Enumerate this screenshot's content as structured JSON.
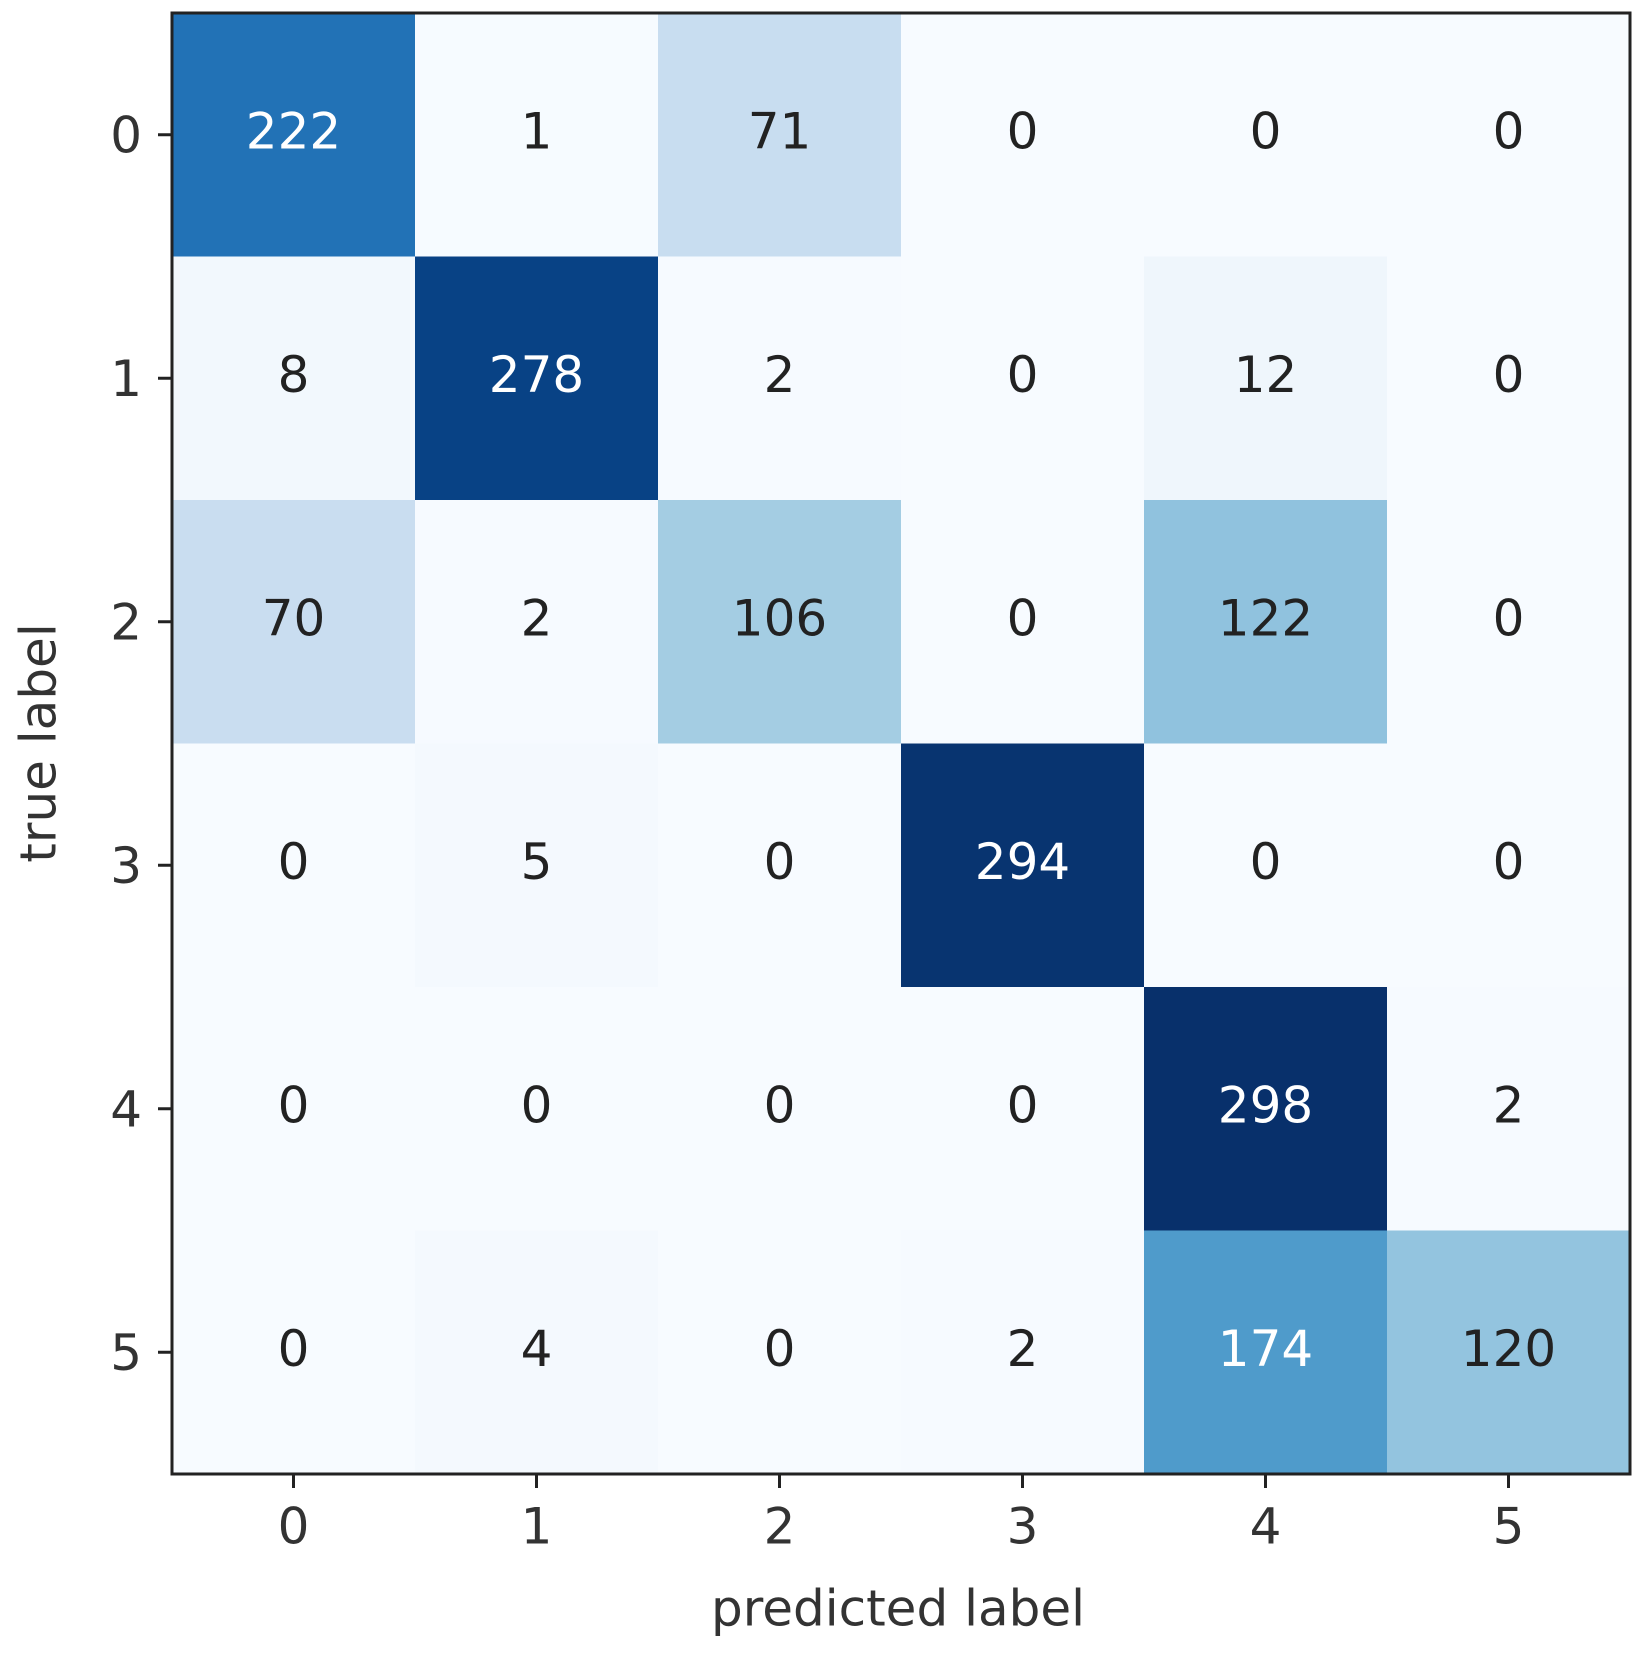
{
  "chart_data": {
    "type": "heatmap",
    "x_label": "predicted label",
    "y_label": "true label",
    "x_categories": [
      "0",
      "1",
      "2",
      "3",
      "4",
      "5"
    ],
    "y_categories": [
      "0",
      "1",
      "2",
      "3",
      "4",
      "5"
    ],
    "values": [
      [
        222,
        1,
        71,
        0,
        0,
        0
      ],
      [
        8,
        278,
        2,
        0,
        12,
        0
      ],
      [
        70,
        2,
        106,
        0,
        122,
        0
      ],
      [
        0,
        5,
        0,
        294,
        0,
        0
      ],
      [
        0,
        0,
        0,
        0,
        298,
        2
      ],
      [
        0,
        4,
        0,
        2,
        174,
        120
      ]
    ],
    "colormap": "Blues"
  }
}
